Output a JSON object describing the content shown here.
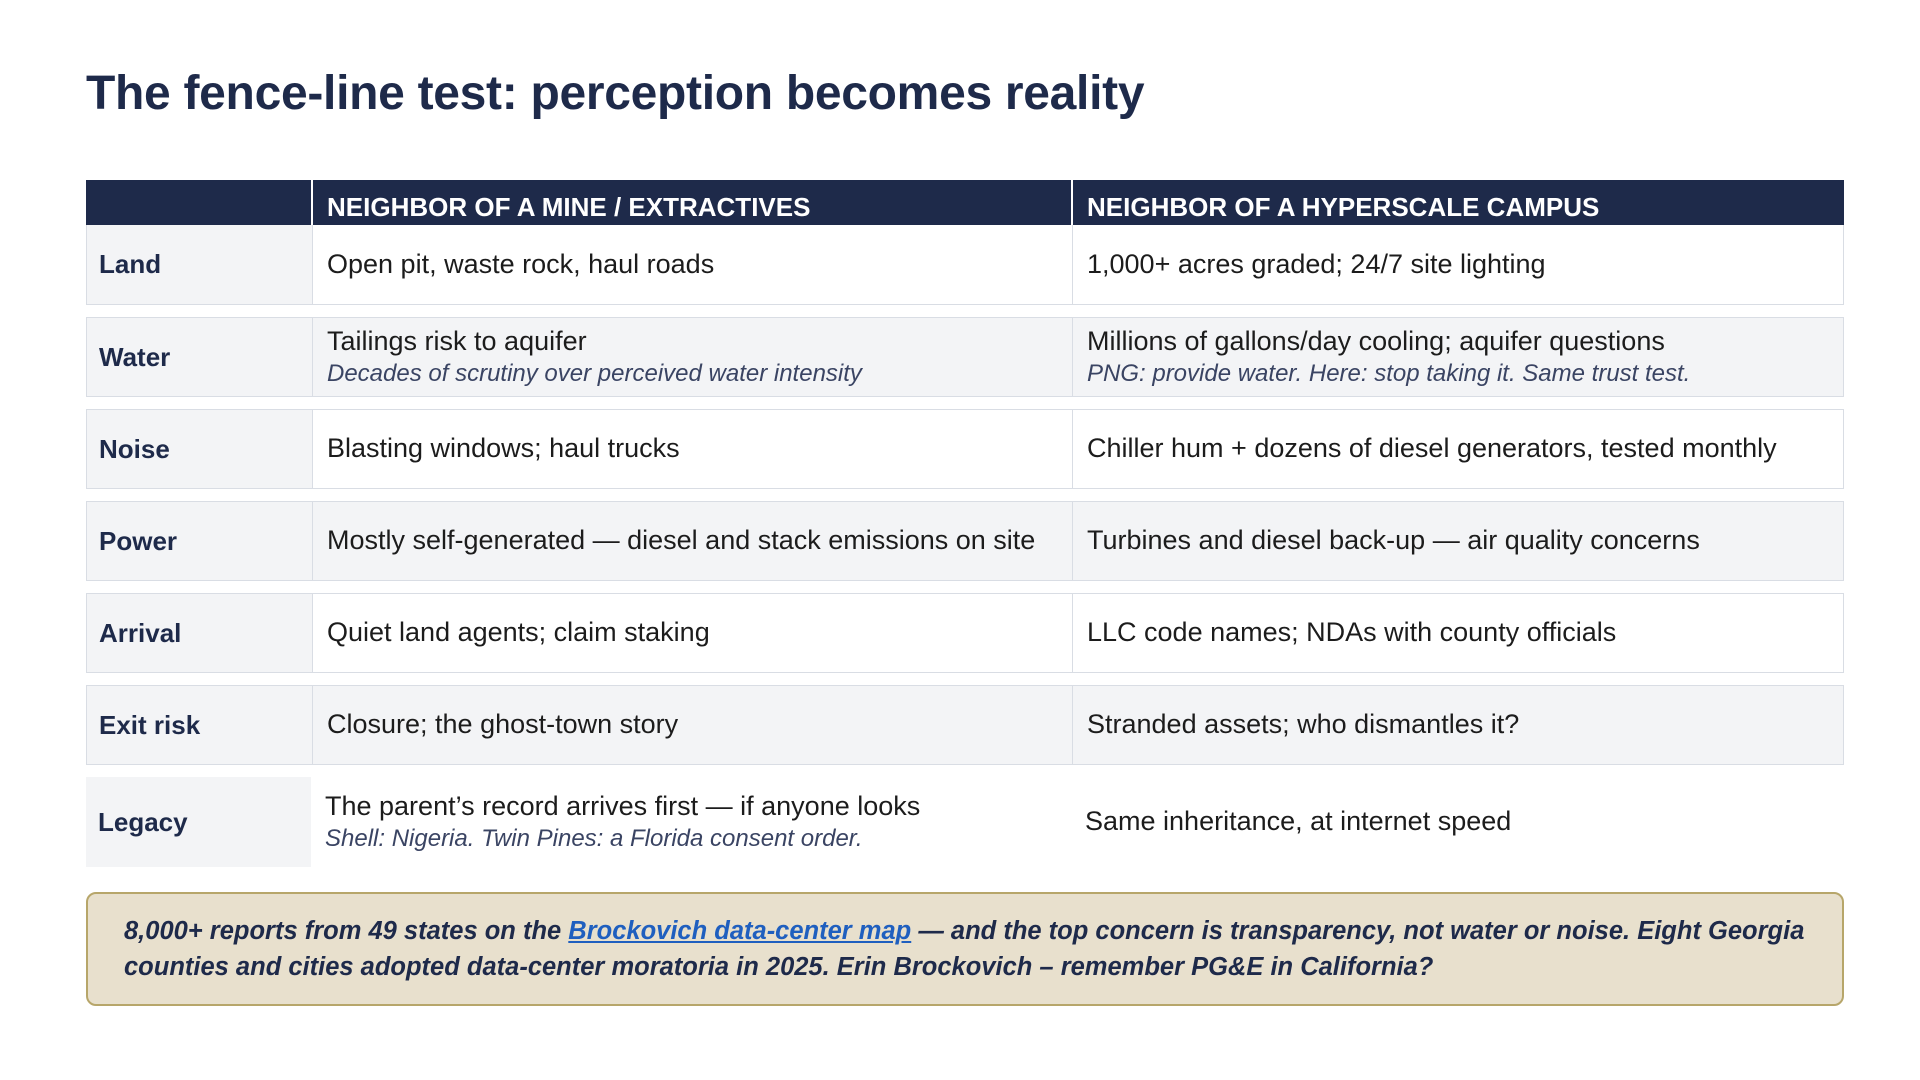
{
  "title": "The fence-line test: perception becomes reality",
  "table": {
    "headers": [
      "",
      "NEIGHBOR OF A MINE / EXTRACTIVES",
      "NEIGHBOR OF A HYPERSCALE CAMPUS"
    ],
    "rows": [
      {
        "label": "Land",
        "mine": "Open pit, waste rock, haul roads",
        "mine_note": "",
        "campus": "1,000+ acres graded; 24/7 site lighting",
        "campus_note": ""
      },
      {
        "label": "Water",
        "mine": "Tailings risk to aquifer",
        "mine_note": "Decades of scrutiny over perceived water intensity",
        "campus": "Millions of gallons/day cooling; aquifer questions",
        "campus_note": "PNG: provide water. Here: stop taking it. Same trust test."
      },
      {
        "label": "Noise",
        "mine": "Blasting windows; haul trucks",
        "mine_note": "",
        "campus": "Chiller hum + dozens of diesel generators, tested monthly",
        "campus_note": ""
      },
      {
        "label": "Power",
        "mine": "Mostly self-generated — diesel and stack emissions on site",
        "mine_note": "",
        "campus": "Turbines and diesel back-up — air quality concerns",
        "campus_note": ""
      },
      {
        "label": "Arrival",
        "mine": "Quiet land agents; claim staking",
        "mine_note": "",
        "campus": "LLC code names; NDAs with county officials",
        "campus_note": ""
      },
      {
        "label": "Exit risk",
        "mine": "Closure; the ghost-town story",
        "mine_note": "",
        "campus": "Stranded assets; who dismantles it?",
        "campus_note": ""
      },
      {
        "label": "Legacy",
        "mine": "The parent’s record arrives first — if anyone looks",
        "mine_note": "Shell: Nigeria. Twin Pines: a Florida consent order.",
        "campus": "Same inheritance, at internet speed",
        "campus_note": ""
      }
    ]
  },
  "callout": {
    "before_link": "8,000+ reports from 49 states on the ",
    "link_text": "Brockovich data-center map",
    "after_link": " — and the top concern is transparency, not water or noise. Eight Georgia counties and cities adopted data-center moratoria in 2025. Erin Brockovich – remember PG&E in California?"
  },
  "colors": {
    "navy": "#1e2a4a",
    "row_shade": "#f3f4f6",
    "callout_bg": "#e8e0cd",
    "callout_border": "#b7a66a",
    "link": "#1f5fbf"
  }
}
